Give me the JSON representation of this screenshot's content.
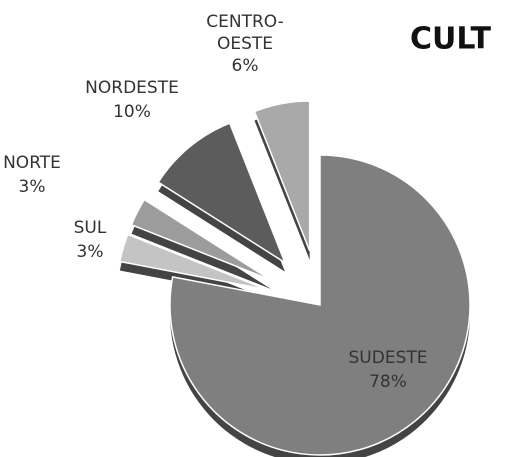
{
  "chart_data": {
    "type": "pie",
    "title": "CULT",
    "categories": [
      "SUDESTE",
      "SUL",
      "NORTE",
      "NORDESTE",
      "CENTRO-OESTE"
    ],
    "values": [
      78,
      3,
      3,
      10,
      6
    ],
    "value_labels": [
      "78%",
      "3%",
      "3%",
      "10%",
      "6%"
    ],
    "colors": [
      "#7f7f7f",
      "#c4c4c4",
      "#9c9c9c",
      "#5c5c5c",
      "#a9a9a9"
    ]
  }
}
